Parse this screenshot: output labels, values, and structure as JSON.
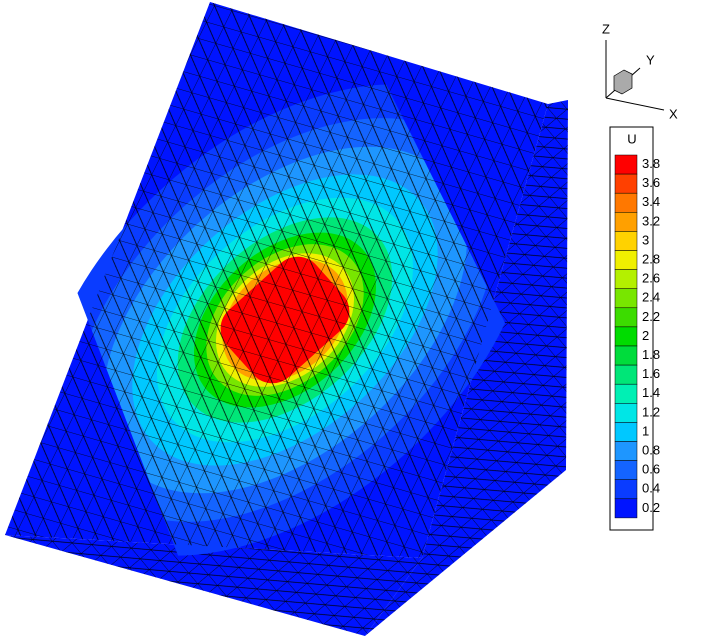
{
  "triad": {
    "z": "Z",
    "y": "Y",
    "x": "X"
  },
  "legend": {
    "title": "U",
    "levels": [
      {
        "label": "3.8",
        "color": "#ff0000"
      },
      {
        "label": "3.6",
        "color": "#ff4000"
      },
      {
        "label": "3.4",
        "color": "#ff7800"
      },
      {
        "label": "3.2",
        "color": "#ffa000"
      },
      {
        "label": "3",
        "color": "#ffd200"
      },
      {
        "label": "2.8",
        "color": "#f0f000"
      },
      {
        "label": "2.6",
        "color": "#b4f000"
      },
      {
        "label": "2.4",
        "color": "#78e600"
      },
      {
        "label": "2.2",
        "color": "#3cdc00"
      },
      {
        "label": "2",
        "color": "#00dc00"
      },
      {
        "label": "1.8",
        "color": "#00dc3c"
      },
      {
        "label": "1.6",
        "color": "#00e678"
      },
      {
        "label": "1.4",
        "color": "#00f0b4"
      },
      {
        "label": "1.2",
        "color": "#00e6e6"
      },
      {
        "label": "1",
        "color": "#00c8ff"
      },
      {
        "label": "0.8",
        "color": "#1e96ff"
      },
      {
        "label": "0.6",
        "color": "#1464ff"
      },
      {
        "label": "0.4",
        "color": "#0a3cff"
      },
      {
        "label": "0.2",
        "color": "#0014ff"
      }
    ]
  }
}
